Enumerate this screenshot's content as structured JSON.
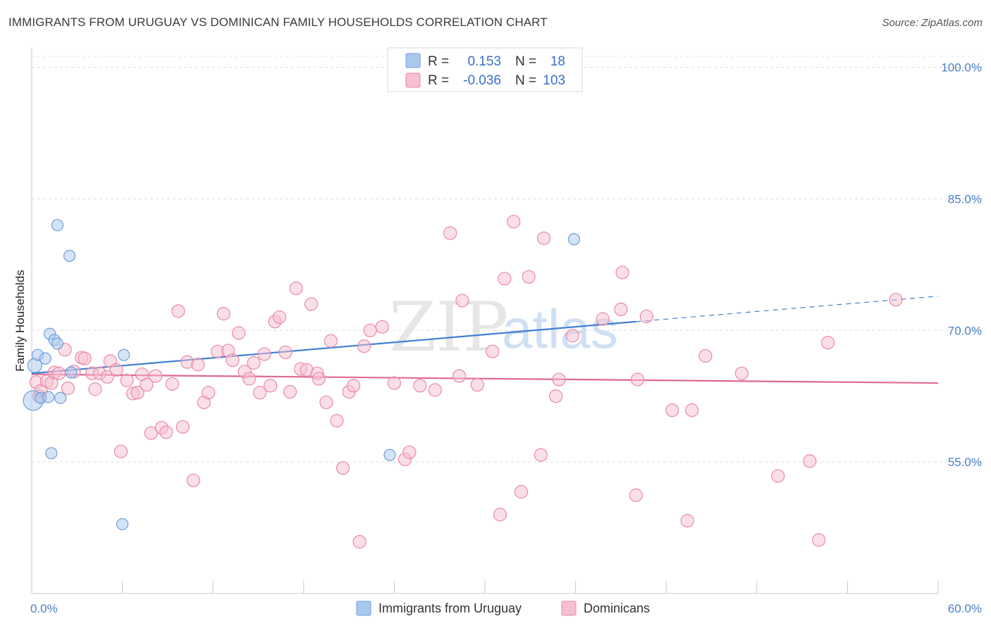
{
  "title": "IMMIGRANTS FROM URUGUAY VS DOMINICAN FAMILY HOUSEHOLDS CORRELATION CHART",
  "source": "Source: ZipAtlas.com",
  "watermark": {
    "zip": "ZIP",
    "atlas": "atlas"
  },
  "legend_top": [
    {
      "r_label": "R =",
      "r_value": "0.153",
      "n_label": "N =",
      "n_value": "18",
      "color": "#a9c8ee",
      "stroke": "#6f9fd8"
    },
    {
      "r_label": "R =",
      "r_value": "-0.036",
      "n_label": "N =",
      "n_value": "103",
      "color": "#f7bfd0",
      "stroke": "#e88aa8"
    }
  ],
  "chart_data": {
    "type": "scatter",
    "title": "IMMIGRANTS FROM URUGUAY VS DOMINICAN FAMILY HOUSEHOLDS CORRELATION CHART",
    "xlabel": "",
    "ylabel": "Family Households",
    "xlim": [
      0,
      60
    ],
    "ylim": [
      40,
      103.5
    ],
    "x_tick_labels": [
      {
        "value": 0,
        "label": "0.0%"
      },
      {
        "value": 60,
        "label": "60.0%"
      }
    ],
    "x_minor_ticks": [
      0,
      6,
      12,
      18,
      24,
      30,
      36,
      42,
      48,
      54,
      60
    ],
    "y_ticks": [
      {
        "value": 55,
        "label": "55.0%"
      },
      {
        "value": 70,
        "label": "70.0%"
      },
      {
        "value": 85,
        "label": "85.0%"
      },
      {
        "value": 100,
        "label": "100.0%"
      }
    ],
    "grid": true,
    "legend_position": "bottom",
    "series": [
      {
        "name": "Immigrants from Uruguay",
        "color": "#a9c8ee",
        "stroke": "#6f9fd8",
        "line_color": "#3f7fd2",
        "trend": {
          "x": [
            0,
            40
          ],
          "y": [
            65.1,
            71.0
          ],
          "dash_to_x": 60,
          "dash_to_y": 73.9
        },
        "points": [
          [
            0.1,
            62.0,
            14
          ],
          [
            0.2,
            66.0,
            10
          ],
          [
            0.4,
            67.2,
            8
          ],
          [
            0.6,
            62.3,
            8
          ],
          [
            0.9,
            66.8,
            8
          ],
          [
            1.1,
            62.4,
            8
          ],
          [
            1.2,
            69.6,
            8
          ],
          [
            1.5,
            68.9,
            8
          ],
          [
            1.3,
            56.0,
            8
          ],
          [
            1.7,
            68.5,
            8
          ],
          [
            1.9,
            62.3,
            8
          ],
          [
            1.7,
            82.0,
            8
          ],
          [
            2.5,
            78.5,
            8
          ],
          [
            2.6,
            65.2,
            8
          ],
          [
            6.0,
            47.9,
            8
          ],
          [
            6.1,
            67.2,
            8
          ],
          [
            23.7,
            55.8,
            8
          ],
          [
            35.9,
            80.4,
            8
          ]
        ]
      },
      {
        "name": "Dominicans",
        "color": "#f7bfd0",
        "stroke": "#e88aa8",
        "line_color": "#e0698f",
        "trend": {
          "x": [
            0,
            60
          ],
          "y": [
            65.0,
            64.0
          ]
        },
        "points": [
          [
            0.3,
            64.1,
            9
          ],
          [
            0.5,
            62.5,
            9
          ],
          [
            0.6,
            63.1,
            9
          ],
          [
            1.0,
            64.2,
            9
          ],
          [
            1.3,
            64.0,
            9
          ],
          [
            1.5,
            65.2,
            9
          ],
          [
            1.8,
            65.1,
            9
          ],
          [
            2.2,
            67.8,
            9
          ],
          [
            2.4,
            63.4,
            9
          ],
          [
            2.8,
            65.3,
            9
          ],
          [
            3.3,
            66.9,
            9
          ],
          [
            3.5,
            66.8,
            9
          ],
          [
            4.0,
            65.1,
            9
          ],
          [
            4.2,
            63.3,
            9
          ],
          [
            4.5,
            65.1,
            9
          ],
          [
            5.0,
            64.7,
            9
          ],
          [
            5.2,
            66.5,
            9
          ],
          [
            5.6,
            65.5,
            9
          ],
          [
            5.9,
            56.2,
            9
          ],
          [
            6.3,
            64.3,
            9
          ],
          [
            6.7,
            62.8,
            9
          ],
          [
            7.0,
            62.9,
            9
          ],
          [
            7.3,
            65.0,
            9
          ],
          [
            7.6,
            63.8,
            9
          ],
          [
            7.9,
            58.3,
            9
          ],
          [
            8.2,
            64.8,
            9
          ],
          [
            8.6,
            58.9,
            9
          ],
          [
            8.9,
            58.4,
            9
          ],
          [
            9.3,
            63.9,
            9
          ],
          [
            9.7,
            72.2,
            9
          ],
          [
            10.0,
            59.0,
            9
          ],
          [
            10.3,
            66.4,
            9
          ],
          [
            10.7,
            52.9,
            9
          ],
          [
            11.0,
            66.1,
            9
          ],
          [
            11.4,
            61.8,
            9
          ],
          [
            11.7,
            62.9,
            9
          ],
          [
            12.3,
            67.6,
            9
          ],
          [
            12.7,
            71.9,
            9
          ],
          [
            13.0,
            67.7,
            9
          ],
          [
            13.3,
            66.6,
            9
          ],
          [
            13.7,
            69.7,
            9
          ],
          [
            14.1,
            65.3,
            9
          ],
          [
            14.4,
            64.5,
            9
          ],
          [
            14.7,
            66.3,
            9
          ],
          [
            15.1,
            62.9,
            9
          ],
          [
            15.4,
            67.3,
            9
          ],
          [
            15.8,
            63.7,
            9
          ],
          [
            16.1,
            71.0,
            9
          ],
          [
            16.4,
            71.5,
            9
          ],
          [
            16.8,
            67.5,
            9
          ],
          [
            17.1,
            63.0,
            9
          ],
          [
            17.5,
            74.8,
            9
          ],
          [
            17.8,
            65.6,
            9
          ],
          [
            18.2,
            65.5,
            9
          ],
          [
            18.5,
            73.0,
            9
          ],
          [
            18.9,
            65.1,
            9
          ],
          [
            19.0,
            64.5,
            9
          ],
          [
            19.5,
            61.8,
            9
          ],
          [
            19.8,
            68.8,
            9
          ],
          [
            20.2,
            59.7,
            9
          ],
          [
            20.6,
            54.3,
            9
          ],
          [
            21.0,
            63.0,
            9
          ],
          [
            21.3,
            63.7,
            9
          ],
          [
            21.7,
            45.9,
            9
          ],
          [
            22.0,
            68.2,
            9
          ],
          [
            22.4,
            70.0,
            9
          ],
          [
            23.2,
            70.4,
            9
          ],
          [
            24.0,
            64.0,
            9
          ],
          [
            24.7,
            55.3,
            9
          ],
          [
            25.0,
            56.1,
            9
          ],
          [
            25.7,
            63.7,
            9
          ],
          [
            26.7,
            63.2,
            9
          ],
          [
            27.7,
            81.1,
            9
          ],
          [
            28.3,
            64.8,
            9
          ],
          [
            28.5,
            73.4,
            9
          ],
          [
            29.5,
            63.8,
            9
          ],
          [
            30.5,
            67.6,
            9
          ],
          [
            31.0,
            49.0,
            9
          ],
          [
            31.3,
            75.9,
            9
          ],
          [
            31.9,
            82.4,
            9
          ],
          [
            32.4,
            51.6,
            9
          ],
          [
            32.9,
            76.1,
            9
          ],
          [
            33.7,
            55.8,
            9
          ],
          [
            33.9,
            80.5,
            9
          ],
          [
            34.7,
            62.5,
            9
          ],
          [
            34.9,
            64.4,
            9
          ],
          [
            35.8,
            69.4,
            9
          ],
          [
            37.8,
            71.3,
            9
          ],
          [
            39.0,
            72.4,
            9
          ],
          [
            39.1,
            76.6,
            9
          ],
          [
            40.0,
            51.2,
            9
          ],
          [
            40.1,
            64.4,
            9
          ],
          [
            40.7,
            71.6,
            9
          ],
          [
            42.4,
            60.9,
            9
          ],
          [
            43.4,
            48.3,
            9
          ],
          [
            43.7,
            60.9,
            9
          ],
          [
            44.6,
            67.1,
            9
          ],
          [
            47.0,
            65.1,
            9
          ],
          [
            49.4,
            53.4,
            9
          ],
          [
            51.5,
            55.1,
            9
          ],
          [
            52.1,
            46.1,
            9
          ],
          [
            52.7,
            68.6,
            9
          ],
          [
            57.2,
            73.5,
            9
          ]
        ]
      }
    ]
  }
}
